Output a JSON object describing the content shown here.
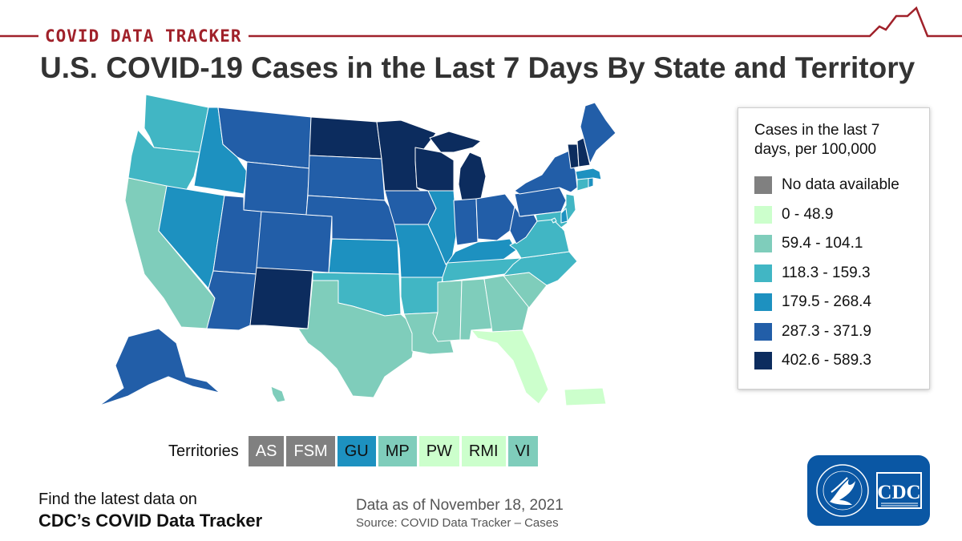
{
  "banner": {
    "label": "COVID DATA TRACKER"
  },
  "title": "U.S. COVID-19 Cases in the Last 7 Days By State and Territory",
  "legend": {
    "title": "Cases in the last 7 days, per 100,000",
    "items": [
      {
        "label": "No data available",
        "color": "#808080"
      },
      {
        "label": "0 - 48.9",
        "color": "#ccffcc"
      },
      {
        "label": "59.4 - 104.1",
        "color": "#7fcdbb"
      },
      {
        "label": "118.3 - 159.3",
        "color": "#41b6c4"
      },
      {
        "label": "179.5 - 268.4",
        "color": "#1d91c0"
      },
      {
        "label": "287.3 - 371.9",
        "color": "#225ea8"
      },
      {
        "label": "402.6 - 589.3",
        "color": "#0c2c5e"
      }
    ]
  },
  "territories": {
    "label": "Territories",
    "items": [
      {
        "code": "AS",
        "bin": 0
      },
      {
        "code": "FSM",
        "bin": 0
      },
      {
        "code": "GU",
        "bin": 4
      },
      {
        "code": "MP",
        "bin": 2
      },
      {
        "code": "PW",
        "bin": 1
      },
      {
        "code": "RMI",
        "bin": 1
      },
      {
        "code": "VI",
        "bin": 2
      }
    ]
  },
  "map_bins": {
    "WA": 3,
    "OR": 3,
    "CA": 2,
    "NV": 4,
    "ID": 4,
    "MT": 5,
    "WY": 5,
    "UT": 5,
    "AZ": 5,
    "CO": 5,
    "NM": 6,
    "ND": 6,
    "SD": 5,
    "NE": 5,
    "KS": 4,
    "OK": 3,
    "TX": 2,
    "MN": 6,
    "IA": 5,
    "MO": 4,
    "AR": 3,
    "LA": 2,
    "WI": 6,
    "IL": 4,
    "MI": 6,
    "IN": 5,
    "OH": 5,
    "KY": 4,
    "TN": 3,
    "MS": 2,
    "AL": 2,
    "GA": 2,
    "FL": 1,
    "SC": 2,
    "NC": 3,
    "VA": 3,
    "WV": 5,
    "PA": 5,
    "NY": 5,
    "VT": 6,
    "NH": 6,
    "ME": 5,
    "MA": 4,
    "RI": 4,
    "CT": 3,
    "NJ": 3,
    "DE": 4,
    "MD": 3,
    "DC": 3,
    "AK": 5,
    "HI": 2,
    "PR": 1
  },
  "footer": {
    "left_line1": "Find the latest data on",
    "left_line2": "CDC’s COVID Data Tracker",
    "date": "Data as of November 18, 2021",
    "source": "Source: COVID Data Tracker – Cases"
  },
  "logo": {
    "text": "CDC",
    "color": "#0a57a4"
  },
  "colors": {
    "banner_red": "#a0212a"
  }
}
